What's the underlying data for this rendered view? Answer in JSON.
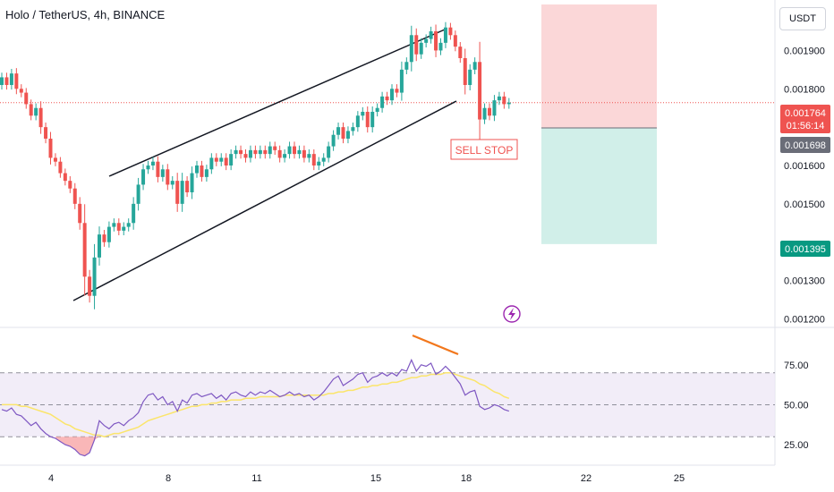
{
  "header": {
    "title": "Holo / TetherUS, 4h, BINANCE"
  },
  "currency_button": {
    "label": "USDT"
  },
  "annotations": {
    "sell_stop": "SELL STOP"
  },
  "price_tags": {
    "current_price": "0.001764",
    "countdown": "01:56:14",
    "entry": "0.001698",
    "target": "0.001395"
  },
  "colors": {
    "up": "#26a69a",
    "down": "#ef5350",
    "rsi": "#7e57c2",
    "rsi_ma": "#fbe56b",
    "divergence": "#f2771c",
    "stop_zone": "#fbd7d8",
    "target_zone": "#d1efe9",
    "channel": "#131722"
  },
  "chart_data": [
    {
      "type": "candlestick",
      "title": "Holo / TetherUS, 4h, BINANCE",
      "ylim": [
        0.00118,
        0.00202
      ],
      "y_ticks": [
        "0.001900",
        "0.001800",
        "0.001700",
        "0.001600",
        "0.001500",
        "0.001300",
        "0.001200"
      ],
      "x_ticks": [
        "4",
        "8",
        "11",
        "15",
        "18",
        "22",
        "25"
      ],
      "closes": [
        0.00183,
        0.00181,
        0.00184,
        0.0018,
        0.00179,
        0.00176,
        0.00173,
        0.00175,
        0.0017,
        0.00167,
        0.00162,
        0.00161,
        0.00158,
        0.00156,
        0.00154,
        0.0015,
        0.00145,
        0.00131,
        0.00126,
        0.00136,
        0.00142,
        0.0014,
        0.00144,
        0.00145,
        0.00143,
        0.00144,
        0.00145,
        0.0015,
        0.00155,
        0.00159,
        0.0016,
        0.00161,
        0.00157,
        0.00159,
        0.00155,
        0.00156,
        0.0015,
        0.00156,
        0.00153,
        0.00158,
        0.0016,
        0.00157,
        0.00159,
        0.00162,
        0.00161,
        0.00162,
        0.0016,
        0.00163,
        0.00164,
        0.00163,
        0.00162,
        0.00164,
        0.00163,
        0.00164,
        0.00163,
        0.00165,
        0.00164,
        0.00162,
        0.00163,
        0.00165,
        0.00163,
        0.00164,
        0.00162,
        0.00163,
        0.0016,
        0.00161,
        0.00162,
        0.00165,
        0.00168,
        0.0017,
        0.00167,
        0.00169,
        0.0017,
        0.00173,
        0.00174,
        0.0017,
        0.00174,
        0.00175,
        0.00178,
        0.00177,
        0.0018,
        0.00179,
        0.00185,
        0.00187,
        0.00194,
        0.00189,
        0.00192,
        0.00193,
        0.00195,
        0.0019,
        0.00192,
        0.00196,
        0.00194,
        0.00191,
        0.00188,
        0.00181,
        0.00185,
        0.00187,
        0.00172,
        0.00175,
        0.00173,
        0.00177,
        0.00178,
        0.00176,
        0.001764
      ],
      "entry": 0.001698,
      "target": 0.001395,
      "stop": 0.00202
    },
    {
      "type": "line",
      "ylim": [
        15,
        95
      ],
      "y_ticks": [
        "75.00",
        "50.00",
        "25.00"
      ],
      "levels": [
        70,
        50,
        30
      ],
      "series": [
        {
          "name": "",
          "values": [
            47,
            46,
            48,
            44,
            43,
            40,
            37,
            39,
            35,
            32,
            30,
            29,
            27,
            25,
            24,
            22,
            19,
            18,
            20,
            28,
            40,
            37,
            35,
            38,
            39,
            37,
            40,
            42,
            45,
            52,
            56,
            57,
            53,
            55,
            50,
            52,
            46,
            53,
            51,
            56,
            57,
            55,
            56,
            57,
            54,
            56,
            53,
            57,
            58,
            56,
            55,
            58,
            56,
            58,
            57,
            59,
            57,
            55,
            56,
            58,
            56,
            57,
            55,
            56,
            53,
            55,
            58,
            62,
            66,
            68,
            62,
            64,
            66,
            69,
            70,
            64,
            67,
            68,
            70,
            68,
            70,
            68,
            72,
            71,
            78,
            71,
            75,
            74,
            76,
            69,
            71,
            74,
            71,
            67,
            63,
            56,
            58,
            59,
            49,
            47,
            48,
            50,
            49,
            47,
            46
          ]
        },
        {
          "name": "",
          "values": [
            50,
            50,
            50,
            50,
            49,
            49,
            48,
            47,
            46,
            45,
            44,
            42,
            40,
            38,
            37,
            35,
            34,
            33,
            32,
            31,
            31,
            30,
            31,
            32,
            32,
            33,
            34,
            35,
            36,
            38,
            40,
            41,
            42,
            43,
            44,
            45,
            46,
            47,
            48,
            49,
            49,
            50,
            50,
            51,
            51,
            52,
            52,
            53,
            53,
            53,
            54,
            54,
            54,
            55,
            55,
            55,
            55,
            55,
            56,
            56,
            56,
            56,
            56,
            56,
            56,
            56,
            56,
            57,
            57,
            58,
            58,
            59,
            59,
            60,
            61,
            61,
            62,
            62,
            63,
            63,
            64,
            64,
            65,
            66,
            67,
            67,
            68,
            68,
            69,
            69,
            69,
            70,
            70,
            69,
            68,
            67,
            66,
            65,
            63,
            62,
            60,
            58,
            57,
            55,
            54
          ]
        }
      ]
    }
  ]
}
